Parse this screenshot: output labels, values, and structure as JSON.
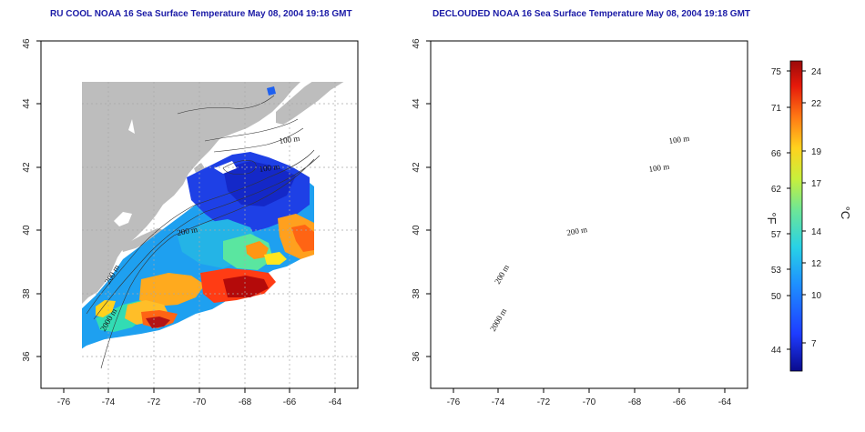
{
  "panels": [
    {
      "title": "RU COOL NOAA 16 Sea Surface Temperature May 08, 2004 19:18 GMT"
    },
    {
      "title": "DECLOUDED NOAA 16 Sea Surface Temperature May 08, 2004 19:18 GMT"
    }
  ],
  "map": {
    "lon_range": [
      -77,
      -63
    ],
    "lat_range": [
      35,
      46
    ],
    "lon_ticks": [
      "-76",
      "-74",
      "-72",
      "-70",
      "-68",
      "-66",
      "-64"
    ],
    "lat_ticks": [
      "36",
      "38",
      "40",
      "42",
      "44",
      "46"
    ],
    "isobath_labels": [
      "100 m",
      "100 m",
      "200 m",
      "200 m",
      "2000 m"
    ]
  },
  "colorbar": {
    "fahrenheit_unit": "°F",
    "celsius_unit": "°C",
    "fahrenheit_ticks": [
      "75",
      "71",
      "66",
      "62",
      "57",
      "53",
      "50",
      "44"
    ],
    "celsius_ticks": [
      "24",
      "22",
      "19",
      "17",
      "14",
      "12",
      "10",
      "7"
    ],
    "colors": [
      "#0a0a8c",
      "#1e3cff",
      "#1e90ff",
      "#28d2e6",
      "#6ee696",
      "#c8f03c",
      "#ffd21e",
      "#ff7814",
      "#e6190a",
      "#9b0a0a"
    ]
  }
}
